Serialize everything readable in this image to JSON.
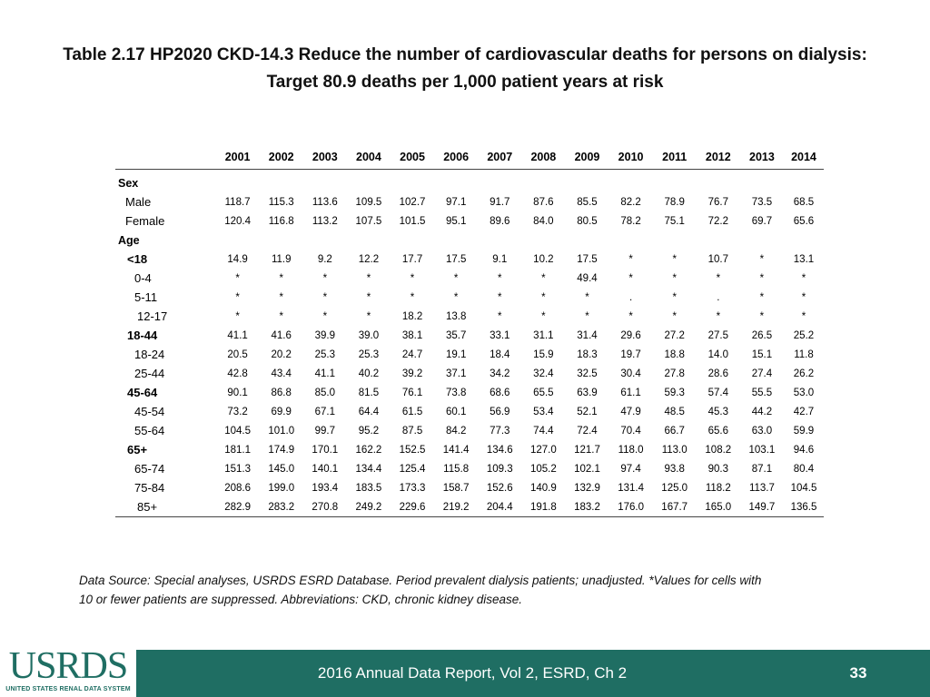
{
  "title": {
    "line1": "Table 2.17  HP2020 CKD-14.3 Reduce the number of cardiovascular deaths for persons on dialysis:",
    "line2": "Target 80.9 deaths per 1,000 patient years at risk"
  },
  "table": {
    "years": [
      "2001",
      "2002",
      "2003",
      "2004",
      "2005",
      "2006",
      "2007",
      "2008",
      "2009",
      "2010",
      "2011",
      "2012",
      "2013",
      "2014"
    ],
    "rows": [
      {
        "label": "Sex",
        "kind": "section",
        "values": []
      },
      {
        "label": "Male",
        "kind": "sub1",
        "values": [
          "118.7",
          "115.3",
          "113.6",
          "109.5",
          "102.7",
          "97.1",
          "91.7",
          "87.6",
          "85.5",
          "82.2",
          "78.9",
          "76.7",
          "73.5",
          "68.5"
        ]
      },
      {
        "label": "Female",
        "kind": "sub1",
        "values": [
          "120.4",
          "116.8",
          "113.2",
          "107.5",
          "101.5",
          "95.1",
          "89.6",
          "84.0",
          "80.5",
          "78.2",
          "75.1",
          "72.2",
          "69.7",
          "65.6"
        ]
      },
      {
        "label": "Age",
        "kind": "section",
        "values": []
      },
      {
        "label": "<18",
        "kind": "group",
        "values": [
          "14.9",
          "11.9",
          "9.2",
          "12.2",
          "17.7",
          "17.5",
          "9.1",
          "10.2",
          "17.5",
          "*",
          "*",
          "10.7",
          "*",
          "13.1"
        ]
      },
      {
        "label": "0-4",
        "kind": "sub2",
        "values": [
          "*",
          "*",
          "*",
          "*",
          "*",
          "*",
          "*",
          "*",
          "49.4",
          "*",
          "*",
          "*",
          "*",
          "*"
        ]
      },
      {
        "label": "5-11",
        "kind": "sub2",
        "values": [
          "*",
          "*",
          "*",
          "*",
          "*",
          "*",
          "*",
          "*",
          "*",
          ".",
          "*",
          ".",
          "*",
          "*"
        ]
      },
      {
        "label": "12-17",
        "kind": "sub3",
        "values": [
          "*",
          "*",
          "*",
          "*",
          "18.2",
          "13.8",
          "*",
          "*",
          "*",
          "*",
          "*",
          "*",
          "*",
          "*"
        ]
      },
      {
        "label": "18-44",
        "kind": "group",
        "values": [
          "41.1",
          "41.6",
          "39.9",
          "39.0",
          "38.1",
          "35.7",
          "33.1",
          "31.1",
          "31.4",
          "29.6",
          "27.2",
          "27.5",
          "26.5",
          "25.2"
        ]
      },
      {
        "label": "18-24",
        "kind": "sub2",
        "values": [
          "20.5",
          "20.2",
          "25.3",
          "25.3",
          "24.7",
          "19.1",
          "18.4",
          "15.9",
          "18.3",
          "19.7",
          "18.8",
          "14.0",
          "15.1",
          "11.8"
        ]
      },
      {
        "label": "25-44",
        "kind": "sub2",
        "values": [
          "42.8",
          "43.4",
          "41.1",
          "40.2",
          "39.2",
          "37.1",
          "34.2",
          "32.4",
          "32.5",
          "30.4",
          "27.8",
          "28.6",
          "27.4",
          "26.2"
        ]
      },
      {
        "label": "45-64",
        "kind": "group",
        "values": [
          "90.1",
          "86.8",
          "85.0",
          "81.5",
          "76.1",
          "73.8",
          "68.6",
          "65.5",
          "63.9",
          "61.1",
          "59.3",
          "57.4",
          "55.5",
          "53.0"
        ]
      },
      {
        "label": "45-54",
        "kind": "sub2",
        "values": [
          "73.2",
          "69.9",
          "67.1",
          "64.4",
          "61.5",
          "60.1",
          "56.9",
          "53.4",
          "52.1",
          "47.9",
          "48.5",
          "45.3",
          "44.2",
          "42.7"
        ]
      },
      {
        "label": "55-64",
        "kind": "sub2",
        "values": [
          "104.5",
          "101.0",
          "99.7",
          "95.2",
          "87.5",
          "84.2",
          "77.3",
          "74.4",
          "72.4",
          "70.4",
          "66.7",
          "65.6",
          "63.0",
          "59.9"
        ]
      },
      {
        "label": "65+",
        "kind": "group",
        "values": [
          "181.1",
          "174.9",
          "170.1",
          "162.2",
          "152.5",
          "141.4",
          "134.6",
          "127.0",
          "121.7",
          "118.0",
          "113.0",
          "108.2",
          "103.1",
          "94.6"
        ]
      },
      {
        "label": "65-74",
        "kind": "sub2",
        "values": [
          "151.3",
          "145.0",
          "140.1",
          "134.4",
          "125.4",
          "115.8",
          "109.3",
          "105.2",
          "102.1",
          "97.4",
          "93.8",
          "90.3",
          "87.1",
          "80.4"
        ]
      },
      {
        "label": "75-84",
        "kind": "sub2",
        "values": [
          "208.6",
          "199.0",
          "193.4",
          "183.5",
          "173.3",
          "158.7",
          "152.6",
          "140.9",
          "132.9",
          "131.4",
          "125.0",
          "118.2",
          "113.7",
          "104.5"
        ]
      },
      {
        "label": "85+",
        "kind": "sub3",
        "values": [
          "282.9",
          "283.2",
          "270.8",
          "249.2",
          "229.6",
          "219.2",
          "204.4",
          "191.8",
          "183.2",
          "176.0",
          "167.7",
          "165.0",
          "149.7",
          "136.5"
        ]
      }
    ]
  },
  "footnote": {
    "line1": "Data Source: Special analyses, USRDS ESRD Database. Period prevalent dialysis patients; unadjusted. *Values for cells with",
    "line2": "10 or fewer patients are suppressed. Abbreviations: CKD, chronic kidney disease."
  },
  "footer": {
    "report": "2016 Annual Data Report, Vol 2, ESRD, Ch 2",
    "page": "33"
  },
  "logo": {
    "word": "USRDS",
    "subtitle": "UNITED STATES RENAL DATA SYSTEM"
  },
  "colors": {
    "footer_band": "#1f6e63",
    "logo": "#1f6e63"
  }
}
